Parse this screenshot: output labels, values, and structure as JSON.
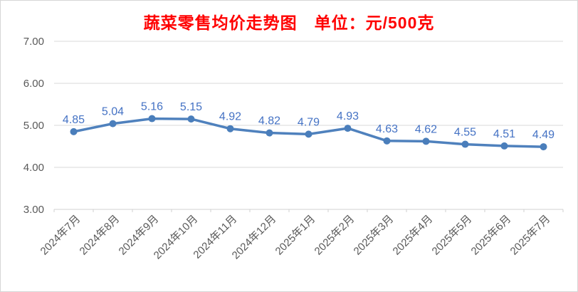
{
  "chart_data": {
    "type": "line",
    "title": "蔬菜零售均价走势图　单位：元/500克",
    "categories": [
      "2024年7月",
      "2024年8月",
      "2024年9月",
      "2024年10月",
      "2024年11月",
      "2024年12月",
      "2025年1月",
      "2025年2月",
      "2025年3月",
      "2025年4月",
      "2025年5月",
      "2025年6月",
      "2025年7月"
    ],
    "values": [
      4.85,
      5.04,
      5.16,
      5.15,
      4.92,
      4.82,
      4.79,
      4.93,
      4.63,
      4.62,
      4.55,
      4.51,
      4.49
    ],
    "xlabel": "",
    "ylabel": "",
    "ylim": [
      3.0,
      7.0
    ],
    "yticks": [
      3.0,
      4.0,
      5.0,
      6.0,
      7.0
    ],
    "ytick_labels": [
      "3.00",
      "4.00",
      "5.00",
      "6.00",
      "7.00"
    ],
    "grid": "horizontal",
    "legend": "none",
    "data_labels_visible": true,
    "colors": {
      "line": "#4F81BD",
      "marker": "#4A7EBB",
      "data_label": "#4472C4",
      "title": "#FF0000",
      "axis_text": "#595959",
      "gridline": "#D9D9D9",
      "axis_line": "#D0D0D0",
      "frame_border": "#D6D6D6",
      "background": "#FFFFFF"
    }
  }
}
